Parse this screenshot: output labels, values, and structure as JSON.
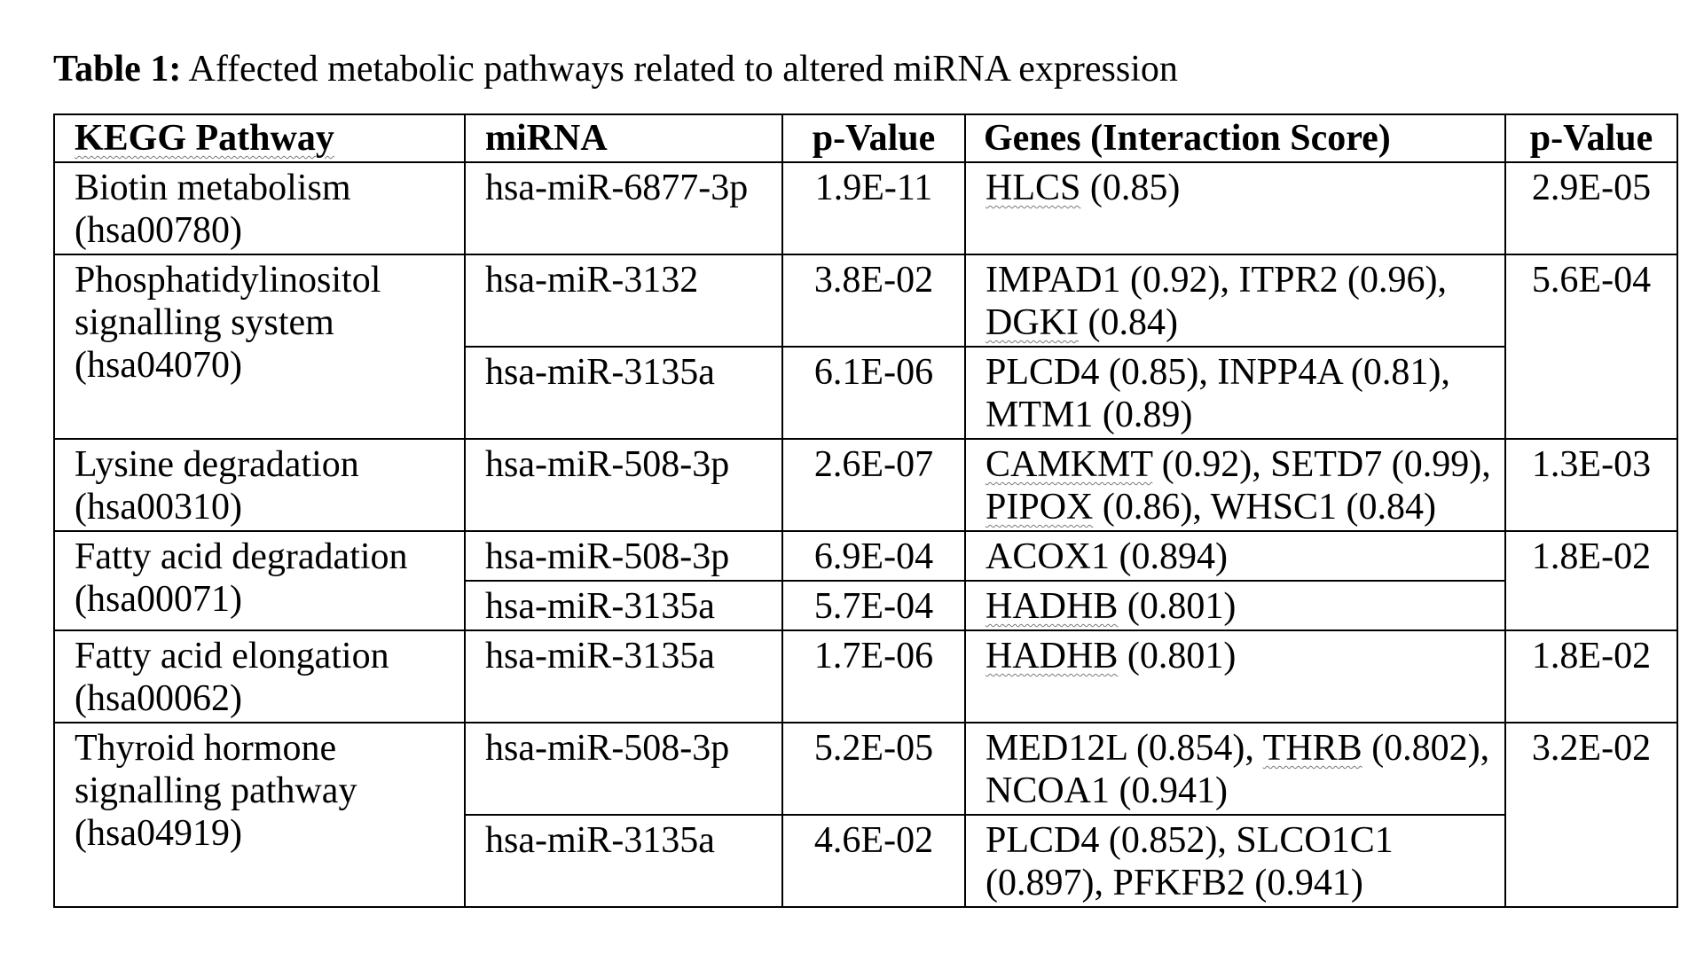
{
  "caption": {
    "label": "Table 1:",
    "text": " Affected metabolic pathways related to altered miRNA expression"
  },
  "headers": {
    "pathway": "KEGG Pathway",
    "mirna": "miRNA",
    "pvalue1": "p-Value",
    "genes": "Genes (Interaction Score)",
    "pvalue2": "p-Value"
  },
  "groups": [
    {
      "pathway": "Biotin metabolism (hsa00780)",
      "pvalue": "2.9E-05",
      "rows": [
        {
          "mirna": "hsa-miR-6877-3p",
          "pvalue": "1.9E-11",
          "genes": [
            {
              "name": "HLCS",
              "score": "(0.85)"
            }
          ]
        }
      ]
    },
    {
      "pathway": "Phosphatidylinositol signalling system (hsa04070)",
      "pvalue": "5.6E-04",
      "rows": [
        {
          "mirna": "hsa-miR-3132",
          "pvalue": "3.8E-02",
          "genes": [
            {
              "name": "IMPAD1",
              "score": "(0.92),"
            },
            {
              "name": "ITPR2",
              "score": "(0.96),"
            },
            {
              "name": "DGKI",
              "score": "(0.84)"
            }
          ]
        },
        {
          "mirna": "hsa-miR-3135a",
          "pvalue": "6.1E-06",
          "genes": [
            {
              "name": "PLCD4",
              "score": "(0.85),"
            },
            {
              "name": "INPP4A",
              "score": "(0.81),"
            },
            {
              "name": "MTM1",
              "score": "(0.89)"
            }
          ]
        }
      ]
    },
    {
      "pathway": "Lysine degradation (hsa00310)",
      "pvalue": "1.3E-03",
      "rows": [
        {
          "mirna": "hsa-miR-508-3p",
          "pvalue": "2.6E-07",
          "genes": [
            {
              "name": "CAMKMT",
              "score": "(0.92),"
            },
            {
              "name": "SETD7",
              "score": "(0.99),"
            },
            {
              "name": "PIPOX",
              "score": "(0.86),"
            },
            {
              "name": "WHSC1",
              "score": "(0.84)"
            }
          ]
        }
      ]
    },
    {
      "pathway": "Fatty acid degradation (hsa00071)",
      "pvalue": "1.8E-02",
      "rows": [
        {
          "mirna": "hsa-miR-508-3p",
          "pvalue": "6.9E-04",
          "genes": [
            {
              "name": "ACOX1",
              "score": "(0.894)"
            }
          ]
        },
        {
          "mirna": "hsa-miR-3135a",
          "pvalue": "5.7E-04",
          "genes": [
            {
              "name": "HADHB",
              "score": "(0.801)"
            }
          ]
        }
      ]
    },
    {
      "pathway": "Fatty acid elongation (hsa00062)",
      "pvalue": "1.8E-02",
      "rows": [
        {
          "mirna": "hsa-miR-3135a",
          "pvalue": "1.7E-06",
          "genes": [
            {
              "name": "HADHB",
              "score": "(0.801)"
            }
          ]
        }
      ]
    },
    {
      "pathway": "Thyroid hormone signalling pathway (hsa04919)",
      "pvalue": "3.2E-02",
      "rows": [
        {
          "mirna": "hsa-miR-508-3p",
          "pvalue": "5.2E-05",
          "genes": [
            {
              "name": "MED12L",
              "score": "(0.854),"
            },
            {
              "name": "THRB",
              "score": "(0.802),"
            },
            {
              "name": "NCOA1",
              "score": "(0.941)"
            }
          ]
        },
        {
          "mirna": "hsa-miR-3135a",
          "pvalue": "4.6E-02",
          "genes": [
            {
              "name": "PLCD4",
              "score": "(0.852),"
            },
            {
              "name": "SLCO1C1",
              "score": "(0.897),"
            },
            {
              "name": "PFKFB2",
              "score": "(0.941)"
            }
          ]
        }
      ]
    }
  ]
}
